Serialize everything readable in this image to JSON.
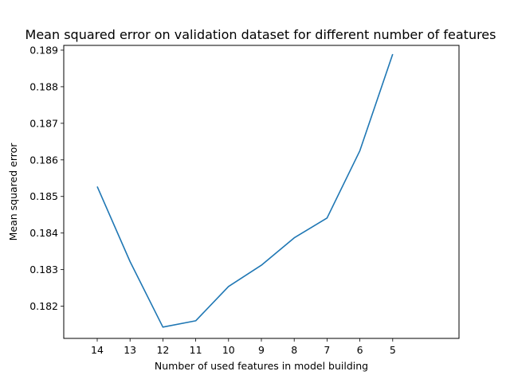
{
  "chart_data": {
    "type": "line",
    "title": "Mean squared error on validation dataset for different number of features",
    "xlabel": "Number of used features in model building",
    "ylabel": "Mean squared error",
    "x": [
      "14",
      "13",
      "12",
      "11",
      "10",
      "9",
      "8",
      "7",
      "6",
      "5"
    ],
    "series": [
      {
        "values": [
          0.18527,
          0.18322,
          0.18143,
          0.1816,
          0.18254,
          0.18312,
          0.18387,
          0.18441,
          0.18625,
          0.18889
        ]
      }
    ],
    "ylim": [
      0.18112,
      0.18913
    ],
    "yticks": [
      "0.182",
      "0.183",
      "0.184",
      "0.185",
      "0.186",
      "0.187",
      "0.188",
      "0.189"
    ],
    "grid": false,
    "legend": false,
    "line_color": "#1f77b4"
  }
}
